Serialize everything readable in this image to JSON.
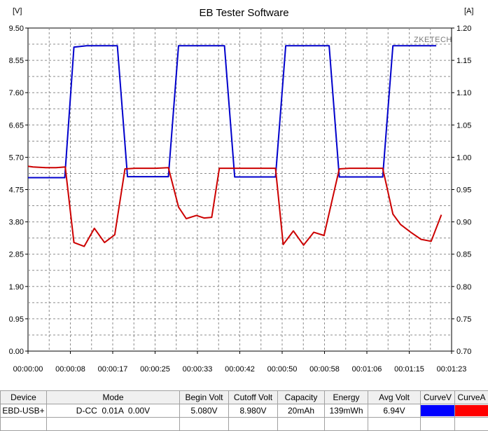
{
  "window": {
    "title": "EB Tester Software",
    "left_unit": "[V]",
    "right_unit": "[A]",
    "watermark": "ZKETECH"
  },
  "chart_data": {
    "type": "line",
    "title": "EB Tester Software",
    "xlabel": "",
    "ylabel": "[V]",
    "y2label": "[A]",
    "grid": true,
    "x_ticks": [
      "00:00:00",
      "00:00:08",
      "00:00:17",
      "00:00:25",
      "00:00:33",
      "00:00:42",
      "00:00:50",
      "00:00:58",
      "00:01:06",
      "00:01:15",
      "00:01:23"
    ],
    "y_ticks": [
      "9.50",
      "8.55",
      "7.60",
      "6.65",
      "5.70",
      "4.75",
      "3.80",
      "2.85",
      "1.90",
      "0.95",
      "0.00"
    ],
    "y2_ticks": [
      "1.20",
      "1.15",
      "1.10",
      "1.05",
      "1.00",
      "0.95",
      "0.90",
      "0.85",
      "0.80",
      "0.75",
      "0.70"
    ],
    "xlim": [
      0,
      83
    ],
    "ylim": [
      0,
      9.5
    ],
    "y2lim": [
      0.7,
      1.2
    ],
    "series": [
      {
        "name": "CurveV",
        "axis": "left",
        "color": "#0000cc",
        "x": [
          0,
          7.2,
          9,
          11.5,
          17.5,
          19.5,
          27.5,
          29.5,
          38.5,
          40.5,
          48.5,
          50.5,
          59,
          61,
          69.5,
          71.5,
          80
        ],
        "y": [
          5.1,
          5.1,
          8.94,
          8.98,
          8.98,
          5.13,
          5.13,
          8.98,
          8.98,
          5.12,
          5.12,
          8.98,
          8.98,
          5.12,
          5.12,
          8.98,
          8.98
        ]
      },
      {
        "name": "CurveA",
        "axis": "right",
        "color": "#cc0000",
        "x": [
          0,
          1,
          3.5,
          5.5,
          7.3,
          9,
          11,
          13,
          15,
          17,
          19,
          21,
          23,
          25,
          27.5,
          29.5,
          31,
          33,
          34.5,
          36,
          37.5,
          40,
          43,
          46,
          48.5,
          50,
          52,
          54,
          56,
          58,
          61,
          63,
          65,
          67,
          69.5,
          71.5,
          73,
          75,
          77,
          79,
          81
        ],
        "y": [
          0.986,
          0.985,
          0.984,
          0.984,
          0.985,
          0.868,
          0.862,
          0.89,
          0.868,
          0.88,
          0.982,
          0.983,
          0.983,
          0.983,
          0.984,
          0.923,
          0.905,
          0.91,
          0.906,
          0.907,
          0.983,
          0.983,
          0.983,
          0.983,
          0.983,
          0.865,
          0.886,
          0.864,
          0.884,
          0.879,
          0.982,
          0.983,
          0.983,
          0.983,
          0.983,
          0.912,
          0.896,
          0.884,
          0.873,
          0.87,
          0.911
        ]
      }
    ]
  },
  "status_table": {
    "headers": [
      "Device",
      "Mode",
      "Begin Volt",
      "Cutoff Volt",
      "Capacity",
      "Energy",
      "Avg Volt",
      "CurveV",
      "CurveA"
    ],
    "row": {
      "device": "EBD-USB+",
      "mode": "D-CC  0.01A  0.00V",
      "begin_volt": "5.080V",
      "cutoff_volt": "8.980V",
      "capacity": "20mAh",
      "energy": "139mWh",
      "avg_volt": "6.94V",
      "curve_v_color": "#0000ff",
      "curve_a_color": "#ff0000"
    }
  }
}
